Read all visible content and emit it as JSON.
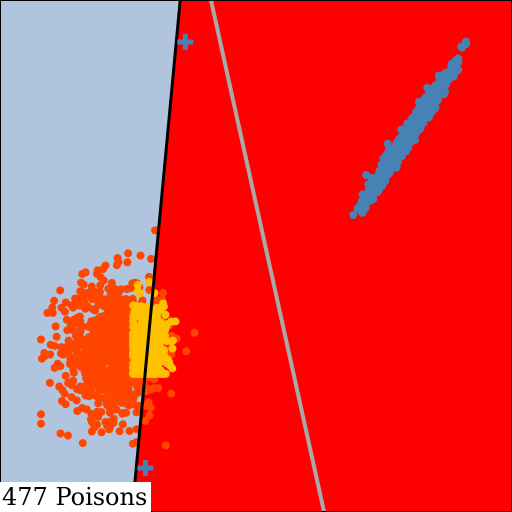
{
  "chart_data": {
    "type": "scatter",
    "title": "",
    "xlabel": "",
    "ylabel": "",
    "xlim": [
      0,
      1
    ],
    "ylim": [
      0,
      1
    ],
    "grid": false,
    "annotation": "477 Poisons",
    "colors": {
      "region_left": "#b0c4de",
      "region_right": "#ff0000",
      "boundary_poisoned": "#000000",
      "boundary_clean": "#a9a9a9",
      "cluster_blue": "#4682b4",
      "cluster_orange": "#ff4500",
      "poison_points": "#ffc000",
      "marker_plus": "#4682b4"
    },
    "boundaries": [
      {
        "role": "poisoned",
        "from": [
          0.352,
          1.0
        ],
        "to": [
          0.258,
          0.0
        ]
      },
      {
        "role": "clean",
        "from": [
          0.412,
          1.0
        ],
        "to": [
          0.633,
          0.0
        ]
      }
    ],
    "clusters": [
      {
        "role": "blue",
        "shape": "elongated",
        "center": [
          0.8,
          0.74
        ],
        "extent": [
          [
            0.69,
            0.58
          ],
          [
            0.91,
            0.92
          ]
        ],
        "approx_points": 800
      },
      {
        "role": "orange",
        "shape": "round",
        "center": [
          0.22,
          0.32
        ],
        "extent": [
          [
            0.08,
            0.13
          ],
          [
            0.38,
            0.55
          ]
        ],
        "approx_points": 800
      },
      {
        "role": "poison",
        "shape": "round",
        "center": [
          0.29,
          0.32
        ],
        "extent": [
          [
            0.26,
            0.27
          ],
          [
            0.37,
            0.54
          ]
        ],
        "approx_points": 477
      }
    ],
    "markers": [
      {
        "shape": "plus",
        "x": 0.362,
        "y": 0.918
      },
      {
        "shape": "plus",
        "x": 0.284,
        "y": 0.086
      }
    ]
  }
}
